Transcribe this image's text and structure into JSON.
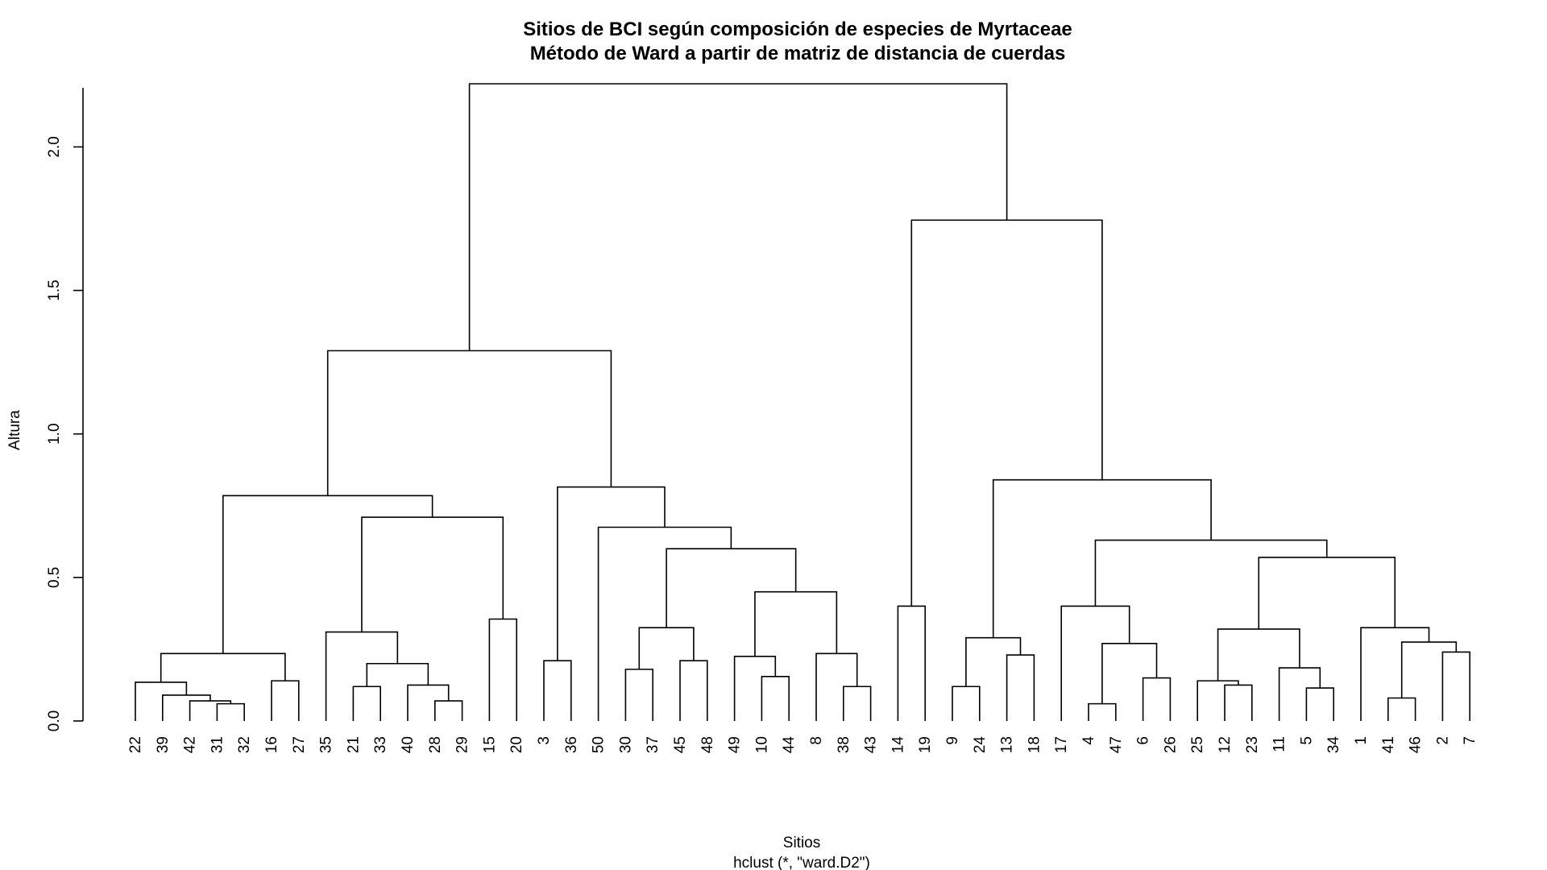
{
  "chart_data": {
    "type": "dendrogram",
    "title": "Sitios de BCI según composición de especies de Myrtaceae",
    "subtitle": "Método de Ward a partir de matriz de distancia de cuerdas",
    "xlabel": "Sitios",
    "sub_xlabel": "hclust (*, \"ward.D2\")",
    "ylabel": "Altura",
    "ylim": [
      0,
      2.2
    ],
    "y_ticks": [
      0.0,
      0.5,
      1.0,
      1.5,
      2.0
    ],
    "y_tick_labels": [
      "0.0",
      "0.5",
      "1.0",
      "1.5",
      "2.0"
    ],
    "leaves": [
      "22",
      "39",
      "42",
      "31",
      "32",
      "16",
      "27",
      "35",
      "21",
      "33",
      "40",
      "28",
      "29",
      "15",
      "20",
      "3",
      "36",
      "50",
      "30",
      "37",
      "45",
      "48",
      "49",
      "10",
      "44",
      "8",
      "38",
      "43",
      "14",
      "19",
      "9",
      "24",
      "13",
      "18",
      "17",
      "4",
      "47",
      "6",
      "26",
      "25",
      "12",
      "23",
      "11",
      "5",
      "34",
      "1",
      "41",
      "46",
      "2",
      "7"
    ],
    "merges": [
      {
        "id": "A1",
        "left": "31",
        "right": "32",
        "height": 0.06
      },
      {
        "id": "A2",
        "left": "42",
        "right": "A1",
        "height": 0.07
      },
      {
        "id": "A3",
        "left": "39",
        "right": "A2",
        "height": 0.09
      },
      {
        "id": "A4",
        "left": "22",
        "right": "A3",
        "height": 0.135
      },
      {
        "id": "A5",
        "left": "16",
        "right": "27",
        "height": 0.14
      },
      {
        "id": "A6",
        "left": "A4",
        "right": "A5",
        "height": 0.235
      },
      {
        "id": "B1",
        "left": "21",
        "right": "33",
        "height": 0.12
      },
      {
        "id": "B2",
        "left": "28",
        "right": "29",
        "height": 0.07
      },
      {
        "id": "B3",
        "left": "40",
        "right": "B2",
        "height": 0.125
      },
      {
        "id": "B4",
        "left": "B1",
        "right": "B3",
        "height": 0.2
      },
      {
        "id": "B5",
        "left": "35",
        "right": "B4",
        "height": 0.31
      },
      {
        "id": "B6",
        "left": "15",
        "right": "20",
        "height": 0.355
      },
      {
        "id": "B7",
        "left": "B5",
        "right": "B6",
        "height": 0.71
      },
      {
        "id": "B8",
        "left": "A6",
        "right": "B7",
        "height": 0.785
      },
      {
        "id": "C1",
        "left": "3",
        "right": "36",
        "height": 0.21
      },
      {
        "id": "C2",
        "left": "30",
        "right": "37",
        "height": 0.18
      },
      {
        "id": "C3",
        "left": "45",
        "right": "48",
        "height": 0.21
      },
      {
        "id": "C4",
        "left": "C2",
        "right": "C3",
        "height": 0.325
      },
      {
        "id": "C5",
        "left": "10",
        "right": "44",
        "height": 0.155
      },
      {
        "id": "C6",
        "left": "49",
        "right": "C5",
        "height": 0.225
      },
      {
        "id": "C7",
        "left": "38",
        "right": "43",
        "height": 0.12
      },
      {
        "id": "C8",
        "left": "8",
        "right": "C7",
        "height": 0.235
      },
      {
        "id": "C9",
        "left": "C6",
        "right": "C8",
        "height": 0.45
      },
      {
        "id": "C10",
        "left": "C4",
        "right": "C9",
        "height": 0.6
      },
      {
        "id": "C11",
        "left": "50",
        "right": "C10",
        "height": 0.675
      },
      {
        "id": "C12",
        "left": "C1",
        "right": "C11",
        "height": 0.815
      },
      {
        "id": "L1",
        "left": "B8",
        "right": "C12",
        "height": 1.29
      },
      {
        "id": "D1",
        "left": "14",
        "right": "19",
        "height": 0.4
      },
      {
        "id": "E1",
        "left": "9",
        "right": "24",
        "height": 0.12
      },
      {
        "id": "E2",
        "left": "13",
        "right": "18",
        "height": 0.23
      },
      {
        "id": "E3",
        "left": "E1",
        "right": "E2",
        "height": 0.29
      },
      {
        "id": "F1",
        "left": "4",
        "right": "47",
        "height": 0.06
      },
      {
        "id": "F2",
        "left": "6",
        "right": "26",
        "height": 0.15
      },
      {
        "id": "F3",
        "left": "F1",
        "right": "F2",
        "height": 0.27
      },
      {
        "id": "F4",
        "left": "17",
        "right": "F3",
        "height": 0.4
      },
      {
        "id": "G1",
        "left": "12",
        "right": "23",
        "height": 0.125
      },
      {
        "id": "G2",
        "left": "25",
        "right": "G1",
        "height": 0.14
      },
      {
        "id": "G3",
        "left": "5",
        "right": "34",
        "height": 0.115
      },
      {
        "id": "G4",
        "left": "11",
        "right": "G3",
        "height": 0.185
      },
      {
        "id": "G5",
        "left": "G2",
        "right": "G4",
        "height": 0.32
      },
      {
        "id": "H1",
        "left": "41",
        "right": "46",
        "height": 0.08
      },
      {
        "id": "H2",
        "left": "2",
        "right": "7",
        "height": 0.24
      },
      {
        "id": "H3",
        "left": "H1",
        "right": "H2",
        "height": 0.275
      },
      {
        "id": "H4",
        "left": "1",
        "right": "H3",
        "height": 0.325
      },
      {
        "id": "G6",
        "left": "G5",
        "right": "H4",
        "height": 0.57
      },
      {
        "id": "F5",
        "left": "F4",
        "right": "G6",
        "height": 0.63
      },
      {
        "id": "E4",
        "left": "E3",
        "right": "F5",
        "height": 0.84
      },
      {
        "id": "R1",
        "left": "D1",
        "right": "E4",
        "height": 1.745
      },
      {
        "id": "ROOT",
        "left": "L1",
        "right": "R1",
        "height": 2.22
      }
    ]
  }
}
